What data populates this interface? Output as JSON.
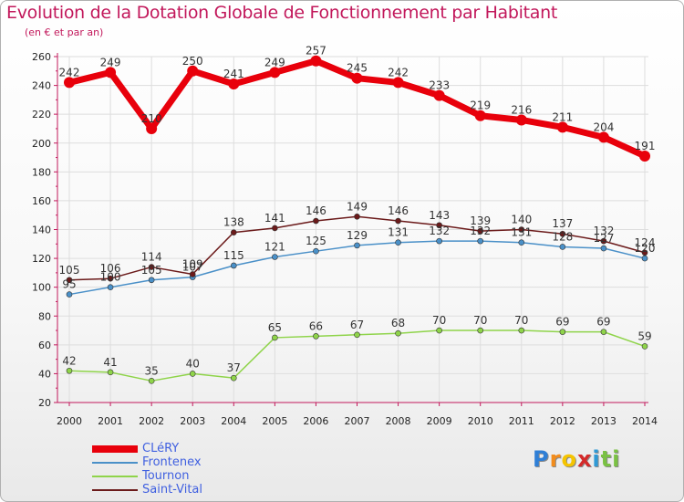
{
  "chart_data": {
    "type": "line",
    "title": "Evolution de la Dotation Globale de Fonctionnement par Habitant",
    "subtitle": "(en € et par an)",
    "xlabel": "",
    "ylabel": "",
    "ylim": [
      20,
      260
    ],
    "yticks": [
      20,
      40,
      60,
      80,
      100,
      120,
      140,
      160,
      180,
      200,
      220,
      240,
      260
    ],
    "categories": [
      "2000",
      "2001",
      "2002",
      "2003",
      "2004",
      "2005",
      "2006",
      "2007",
      "2008",
      "2009",
      "2010",
      "2011",
      "2012",
      "2013",
      "2014"
    ],
    "grid": true,
    "legend_position": "bottom-left",
    "series": [
      {
        "name": "CLéRY",
        "color": "#e8000b",
        "values": [
          242,
          249,
          210,
          250,
          241,
          249,
          257,
          245,
          242,
          233,
          219,
          216,
          211,
          204,
          191
        ]
      },
      {
        "name": "Frontenex",
        "color": "#4a90c8",
        "values": [
          95,
          100,
          105,
          107,
          115,
          121,
          125,
          129,
          131,
          132,
          132,
          131,
          128,
          127,
          120
        ]
      },
      {
        "name": "Tournon",
        "color": "#8fd44a",
        "values": [
          42,
          41,
          35,
          40,
          37,
          65,
          66,
          67,
          68,
          70,
          70,
          70,
          69,
          69,
          59
        ]
      },
      {
        "name": "Saint-Vital",
        "color": "#6b1a1a",
        "values": [
          105,
          106,
          114,
          109,
          138,
          141,
          146,
          149,
          146,
          143,
          139,
          140,
          137,
          132,
          124
        ]
      }
    ]
  },
  "brand": {
    "letters": [
      "P",
      "r",
      "o",
      "x",
      "i",
      "t",
      "i"
    ],
    "colors": [
      "#2f7fd6",
      "#f28c1c",
      "#f5c400",
      "#d42a2a",
      "#2f9ad6",
      "#7ac143",
      "#7ac143"
    ]
  }
}
